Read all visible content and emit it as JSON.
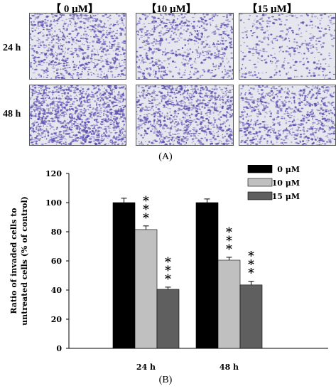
{
  "figure": {
    "columns": [
      "【 0 μM】",
      "【10 μM】",
      "【15 μM】"
    ],
    "rows": [
      "24 h",
      "48 h"
    ],
    "panel_a_label": "(A)",
    "panel_b_label": "(B)",
    "panel_color": "#5a4fb0"
  },
  "chart_data": {
    "type": "bar",
    "categories": [
      "24 h",
      "48 h"
    ],
    "series": [
      {
        "name": "0 μM",
        "values": [
          100,
          100
        ],
        "errors": [
          3,
          2.5
        ],
        "color": "#000000",
        "annotations": [
          "",
          ""
        ]
      },
      {
        "name": "10 μM",
        "values": [
          81.5,
          60.5
        ],
        "errors": [
          2.5,
          2
        ],
        "color": "#c0c0c0",
        "annotations": [
          "***",
          "***"
        ]
      },
      {
        "name": "15 μM",
        "values": [
          40.5,
          43.5
        ],
        "errors": [
          1.5,
          2.5
        ],
        "color": "#5f5f5f",
        "annotations": [
          "***",
          "***"
        ]
      }
    ],
    "ylabel_line1": "Ratio of invaded cells to",
    "ylabel_line2": "untreated cells (% of control)",
    "ylim": [
      0,
      120
    ],
    "yticks": [
      "0",
      "20",
      "40",
      "60",
      "80",
      "100",
      "120"
    ],
    "grid": false,
    "legend_position": "top-right"
  }
}
